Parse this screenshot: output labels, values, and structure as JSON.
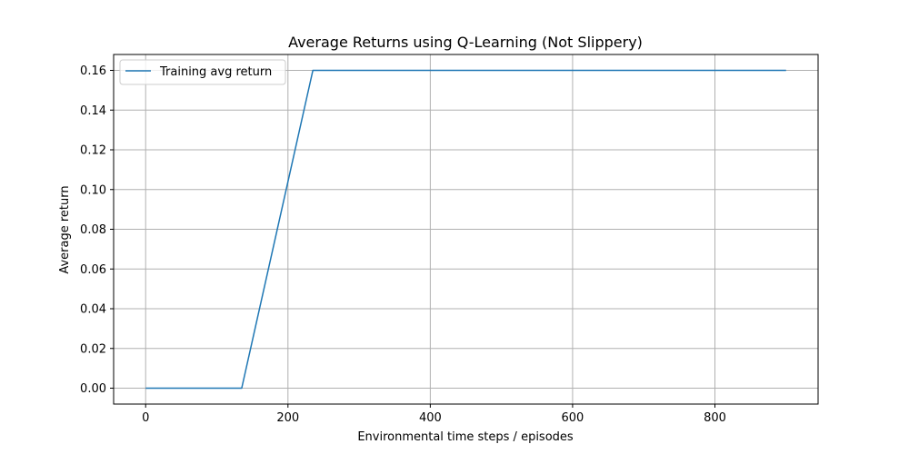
{
  "chart_data": {
    "type": "line",
    "title": "Average Returns using Q-Learning (Not Slippery)",
    "xlabel": "Environmental time steps / episodes",
    "ylabel": "Average return",
    "xlim": [
      -45,
      945
    ],
    "ylim": [
      -0.008,
      0.168
    ],
    "xticks": [
      0,
      200,
      400,
      600,
      800
    ],
    "xtick_labels": [
      "0",
      "200",
      "400",
      "600",
      "800"
    ],
    "yticks": [
      0.0,
      0.02,
      0.04,
      0.06,
      0.08,
      0.1,
      0.12,
      0.14,
      0.16
    ],
    "ytick_labels": [
      "0.00",
      "0.02",
      "0.04",
      "0.06",
      "0.08",
      "0.10",
      "0.12",
      "0.14",
      "0.16"
    ],
    "grid": true,
    "legend_position": "upper-left",
    "series": [
      {
        "name": "Training avg return",
        "color": "#1f77b4",
        "x": [
          0,
          135,
          235,
          900
        ],
        "y": [
          0.0,
          0.0,
          0.16,
          0.16
        ]
      }
    ]
  }
}
